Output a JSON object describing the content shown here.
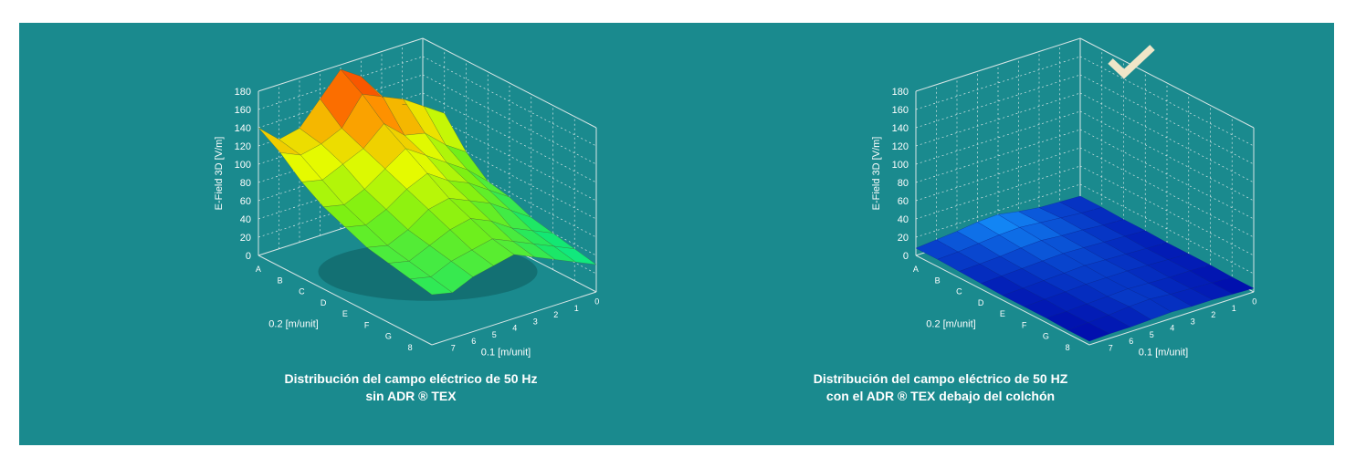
{
  "colors": {
    "panel_bg": "#1a8a8e",
    "caption_text": "#ffffff",
    "axis_text": "#ffffff",
    "grid": "#d8e6e6",
    "check": "#efe6c8"
  },
  "check_icon": "checkmark-icon",
  "chart_data": [
    {
      "type": "surface3d",
      "caption_line1": "Distribución del campo eléctrico de 50 Hz",
      "caption_line2": "sin ADR ® TEX",
      "zlabel": "E-Field 3D [V/m]",
      "zlim": [
        0,
        180
      ],
      "zticks": [
        "0",
        "20",
        "40",
        "60",
        "80",
        "100",
        "120",
        "140",
        "160",
        "180"
      ],
      "rows_label": "0.2 [m/unit]",
      "cols_label": "0.1 [m/unit]",
      "rows": [
        "A",
        "B",
        "C",
        "D",
        "E",
        "F",
        "G",
        "8"
      ],
      "cols": [
        "0",
        "1",
        "2",
        "3",
        "4",
        "5",
        "6",
        "7"
      ],
      "colorscale": "heat",
      "values": [
        [
          105,
          115,
          130,
          160,
          175,
          150,
          125,
          120,
          140
        ],
        [
          110,
          125,
          140,
          150,
          160,
          130,
          120,
          115,
          125
        ],
        [
          80,
          95,
          115,
          120,
          140,
          120,
          110,
          100,
          105
        ],
        [
          60,
          80,
          95,
          110,
          125,
          110,
          95,
          85,
          90
        ],
        [
          55,
          70,
          85,
          95,
          110,
          100,
          85,
          75,
          80
        ],
        [
          45,
          60,
          75,
          85,
          95,
          90,
          75,
          65,
          70
        ],
        [
          40,
          50,
          60,
          75,
          85,
          80,
          70,
          60,
          65
        ],
        [
          35,
          45,
          55,
          65,
          75,
          70,
          65,
          55,
          60
        ],
        [
          30,
          40,
          50,
          60,
          70,
          65,
          60,
          50,
          55
        ]
      ]
    },
    {
      "type": "surface3d",
      "caption_line1": "Distribución del campo eléctrico de 50 HZ",
      "caption_line2": "con el ADR ® TEX debajo del colchón",
      "zlabel": "E-Field 3D [V/m]",
      "zlim": [
        0,
        180
      ],
      "zticks": [
        "0",
        "20",
        "40",
        "60",
        "80",
        "100",
        "120",
        "140",
        "160",
        "180"
      ],
      "rows_label": "0.2 [m/unit]",
      "cols_label": "0.1 [m/unit]",
      "rows": [
        "A",
        "B",
        "C",
        "D",
        "E",
        "F",
        "G",
        "8"
      ],
      "cols": [
        "0",
        "1",
        "2",
        "3",
        "4",
        "5",
        "6",
        "7"
      ],
      "colorscale": "blue",
      "values": [
        [
          7,
          8,
          9,
          12,
          16,
          15,
          12,
          10,
          8
        ],
        [
          7,
          8,
          10,
          12,
          14,
          13,
          11,
          9,
          8
        ],
        [
          6,
          7,
          9,
          10,
          12,
          11,
          9,
          8,
          7
        ],
        [
          6,
          7,
          8,
          9,
          10,
          9,
          8,
          7,
          6
        ],
        [
          5,
          6,
          7,
          8,
          9,
          8,
          7,
          6,
          5
        ],
        [
          5,
          6,
          7,
          8,
          8,
          8,
          7,
          6,
          5
        ],
        [
          5,
          6,
          6,
          7,
          8,
          7,
          6,
          5,
          5
        ],
        [
          4,
          5,
          6,
          7,
          9,
          8,
          6,
          5,
          4
        ],
        [
          4,
          5,
          6,
          6,
          7,
          6,
          5,
          5,
          4
        ]
      ]
    }
  ]
}
